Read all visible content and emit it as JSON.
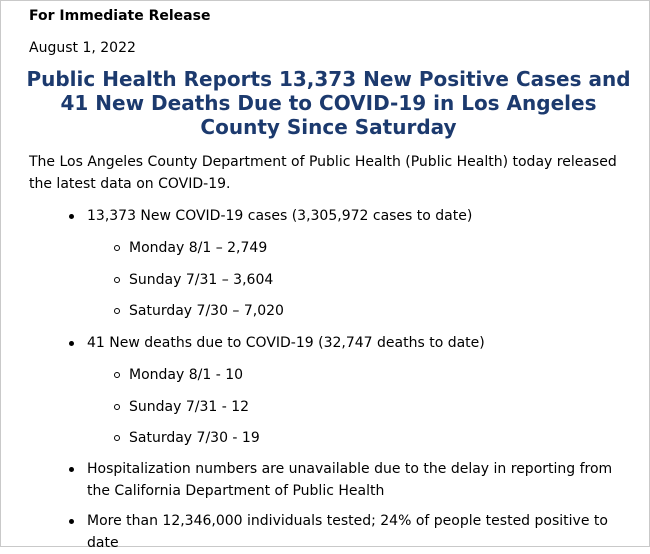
{
  "header": {
    "release": "For Immediate Release",
    "date": "August 1, 2022"
  },
  "title": "Public Health Reports 13,373 New Positive Cases and 41 New Deaths Due to COVID-19 in Los Angeles County Since Saturday",
  "intro": "The Los Angeles County Department of Public Health (Public Health) today released the latest data on COVID-19.",
  "cases": {
    "summary": "13,373 New COVID-19 cases (3,305,972 cases to date)",
    "items": [
      "Monday 8/1 – 2,749",
      "Sunday 7/31 – 3,604",
      "Saturday 7/30 – 7,020"
    ]
  },
  "deaths": {
    "summary": "41 New deaths due to COVID-19 (32,747 deaths to date)",
    "items": [
      "Monday 8/1 - 10",
      "Sunday 7/31 - 12",
      "Saturday 7/30 - 19"
    ]
  },
  "hospitalization": "Hospitalization numbers are unavailable due to the delay in reporting from the California Department of Public Health",
  "testing": "More than 12,346,000 individuals tested; 24% of people tested positive to date"
}
